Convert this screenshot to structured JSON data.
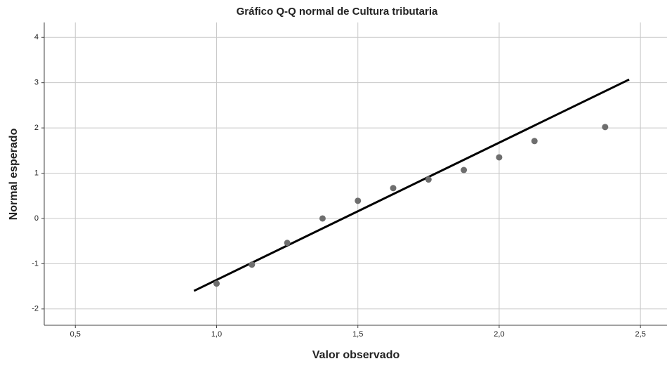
{
  "chart_data": {
    "type": "scatter",
    "title": "Gráfico Q-Q normal de Cultura tributaria",
    "x_label": "Valor observado",
    "y_label": "Normal esperado",
    "x": [
      1.0,
      1.125,
      1.25,
      1.375,
      1.5,
      1.625,
      1.75,
      1.875,
      2.0,
      2.125,
      2.375
    ],
    "values": [
      -1.44,
      -1.02,
      -0.54,
      0.0,
      0.39,
      0.67,
      0.86,
      1.07,
      1.35,
      1.71,
      2.02
    ],
    "color": "#6e6e6e",
    "reference_line": {
      "x": [
        0.92,
        2.46
      ],
      "values": [
        -1.6,
        3.07
      ],
      "color": "#000000"
    },
    "xlim": [
      0.39,
      2.594
    ],
    "ylim": [
      -2.36,
      4.33
    ],
    "xticks": [
      {
        "value": 0.5,
        "label": "0,5"
      },
      {
        "value": 1.0,
        "label": "1,0"
      },
      {
        "value": 1.5,
        "label": "1,5"
      },
      {
        "value": 2.0,
        "label": "2,0"
      },
      {
        "value": 2.5,
        "label": "2,5"
      }
    ],
    "yticks": [
      -2,
      -1,
      0,
      1,
      2,
      3,
      4
    ],
    "grid": true
  }
}
